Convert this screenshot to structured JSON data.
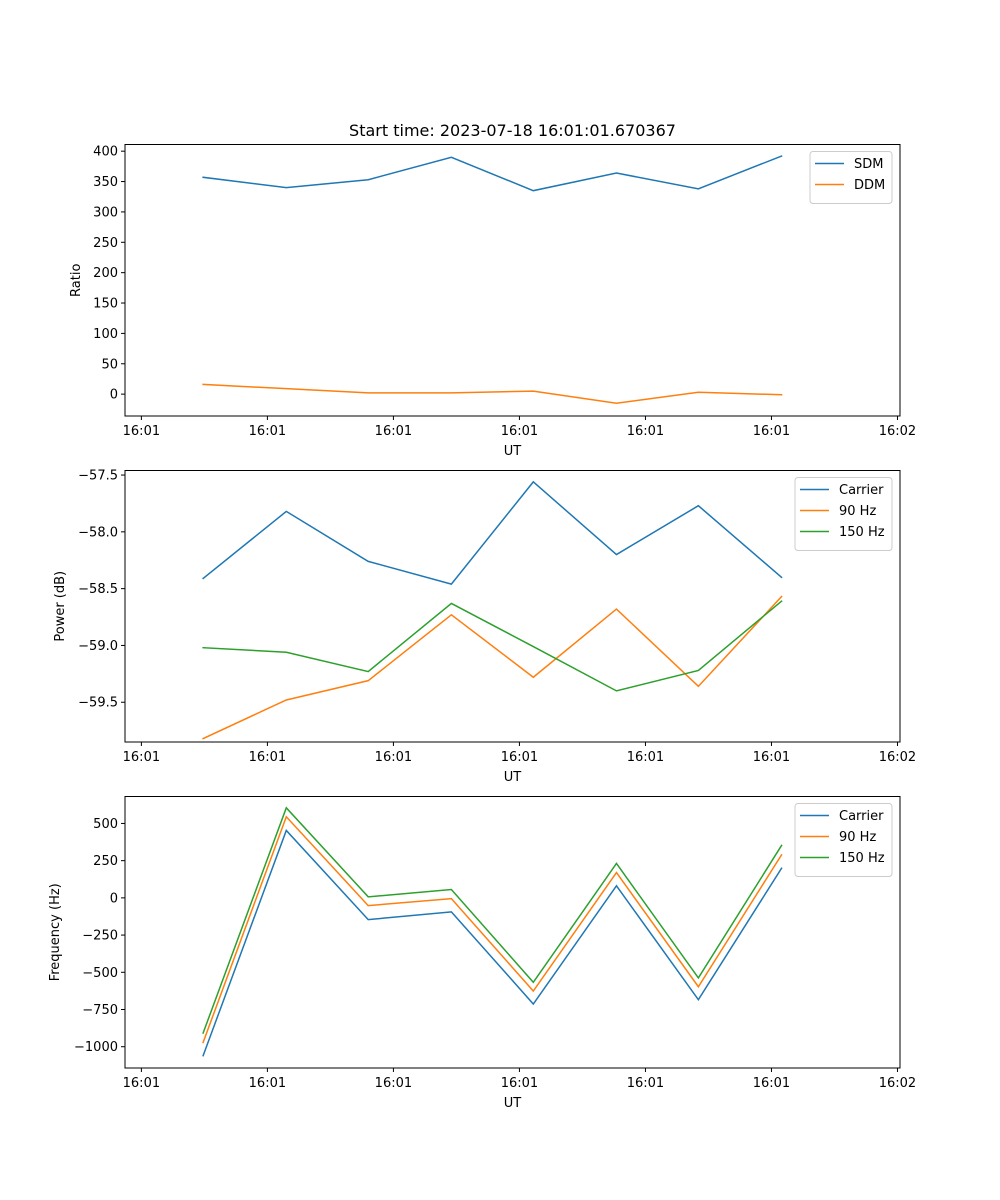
{
  "figure": {
    "title": "Start time: 2023-07-18 16:01:01.670367"
  },
  "chart_data": [
    {
      "type": "line",
      "title": "Start time: 2023-07-18 16:01:01.670367",
      "xlabel": "UT",
      "ylabel": "Ratio",
      "x_unit": "seconds after 16:01:00 UT",
      "x": [
        4.9,
        11.5,
        18.0,
        24.6,
        31.1,
        37.7,
        44.2,
        50.8
      ],
      "xlim": [
        -1.3,
        60.2
      ],
      "xticks": [
        0,
        10,
        20,
        30,
        40,
        50,
        60
      ],
      "xtick_labels": [
        "16:01",
        "16:01",
        "16:01",
        "16:01",
        "16:01",
        "16:01",
        "16:02"
      ],
      "ylim": [
        -36,
        411
      ],
      "yticks": [
        0,
        50,
        100,
        150,
        200,
        250,
        300,
        350,
        400
      ],
      "ytick_labels": [
        "0",
        "50",
        "100",
        "150",
        "200",
        "250",
        "300",
        "350",
        "400"
      ],
      "grid": false,
      "legend": "top-right",
      "series": [
        {
          "name": "SDM",
          "color": "#1f77b4",
          "values": [
            357,
            340,
            353,
            390,
            335,
            364,
            338,
            392
          ]
        },
        {
          "name": "DDM",
          "color": "#ff7f0e",
          "values": [
            16,
            9,
            2,
            2,
            5,
            -15,
            3,
            -1
          ]
        }
      ]
    },
    {
      "type": "line",
      "title": "",
      "xlabel": "UT",
      "ylabel": "Power (dB)",
      "x_unit": "seconds after 16:01:00 UT",
      "x": [
        4.9,
        11.5,
        18.0,
        24.6,
        31.1,
        37.7,
        44.2,
        50.8
      ],
      "xlim": [
        -1.3,
        60.2
      ],
      "xticks": [
        0,
        10,
        20,
        30,
        40,
        50,
        60
      ],
      "xtick_labels": [
        "16:01",
        "16:01",
        "16:01",
        "16:01",
        "16:01",
        "16:01",
        "16:02"
      ],
      "ylim": [
        -59.85,
        -57.46
      ],
      "yticks": [
        -59.5,
        -59.0,
        -58.5,
        -58.0,
        -57.5
      ],
      "ytick_labels": [
        "−59.5",
        "−59.0",
        "−58.5",
        "−58.0",
        "−57.5"
      ],
      "grid": false,
      "legend": "top-right",
      "series": [
        {
          "name": "Carrier",
          "color": "#1f77b4",
          "values": [
            -58.41,
            -57.82,
            -58.26,
            -58.46,
            -57.56,
            -58.2,
            -57.77,
            -58.4
          ]
        },
        {
          "name": "90 Hz",
          "color": "#ff7f0e",
          "values": [
            -59.82,
            -59.48,
            -59.31,
            -58.73,
            -59.28,
            -58.68,
            -59.36,
            -58.57
          ]
        },
        {
          "name": "150 Hz",
          "color": "#2ca02c",
          "values": [
            -59.02,
            -59.06,
            -59.23,
            -58.63,
            -59.01,
            -59.4,
            -59.22,
            -58.61
          ]
        }
      ]
    },
    {
      "type": "line",
      "title": "",
      "xlabel": "UT",
      "ylabel": "Frequency (Hz)",
      "x_unit": "seconds after 16:01:00 UT",
      "x": [
        4.9,
        11.5,
        18.0,
        24.6,
        31.1,
        37.7,
        44.2,
        50.8
      ],
      "xlim": [
        -1.3,
        60.2
      ],
      "xticks": [
        0,
        10,
        20,
        30,
        40,
        50,
        60
      ],
      "xtick_labels": [
        "16:01",
        "16:01",
        "16:01",
        "16:01",
        "16:01",
        "16:01",
        "16:02"
      ],
      "ylim": [
        -1143,
        681
      ],
      "yticks": [
        -1000,
        -750,
        -500,
        -250,
        0,
        250,
        500
      ],
      "ytick_labels": [
        "−1000",
        "−750",
        "−500",
        "−250",
        "0",
        "250",
        "500"
      ],
      "grid": false,
      "legend": "top-right",
      "series": [
        {
          "name": "Carrier",
          "color": "#1f77b4",
          "values": [
            -1060,
            453,
            -146,
            -94,
            -713,
            81,
            -684,
            199
          ]
        },
        {
          "name": "90 Hz",
          "color": "#ff7f0e",
          "values": [
            -971,
            545,
            -52,
            -5,
            -626,
            170,
            -597,
            289
          ]
        },
        {
          "name": "150 Hz",
          "color": "#2ca02c",
          "values": [
            -908,
            605,
            7,
            56,
            -567,
            231,
            -538,
            352
          ]
        }
      ]
    }
  ]
}
